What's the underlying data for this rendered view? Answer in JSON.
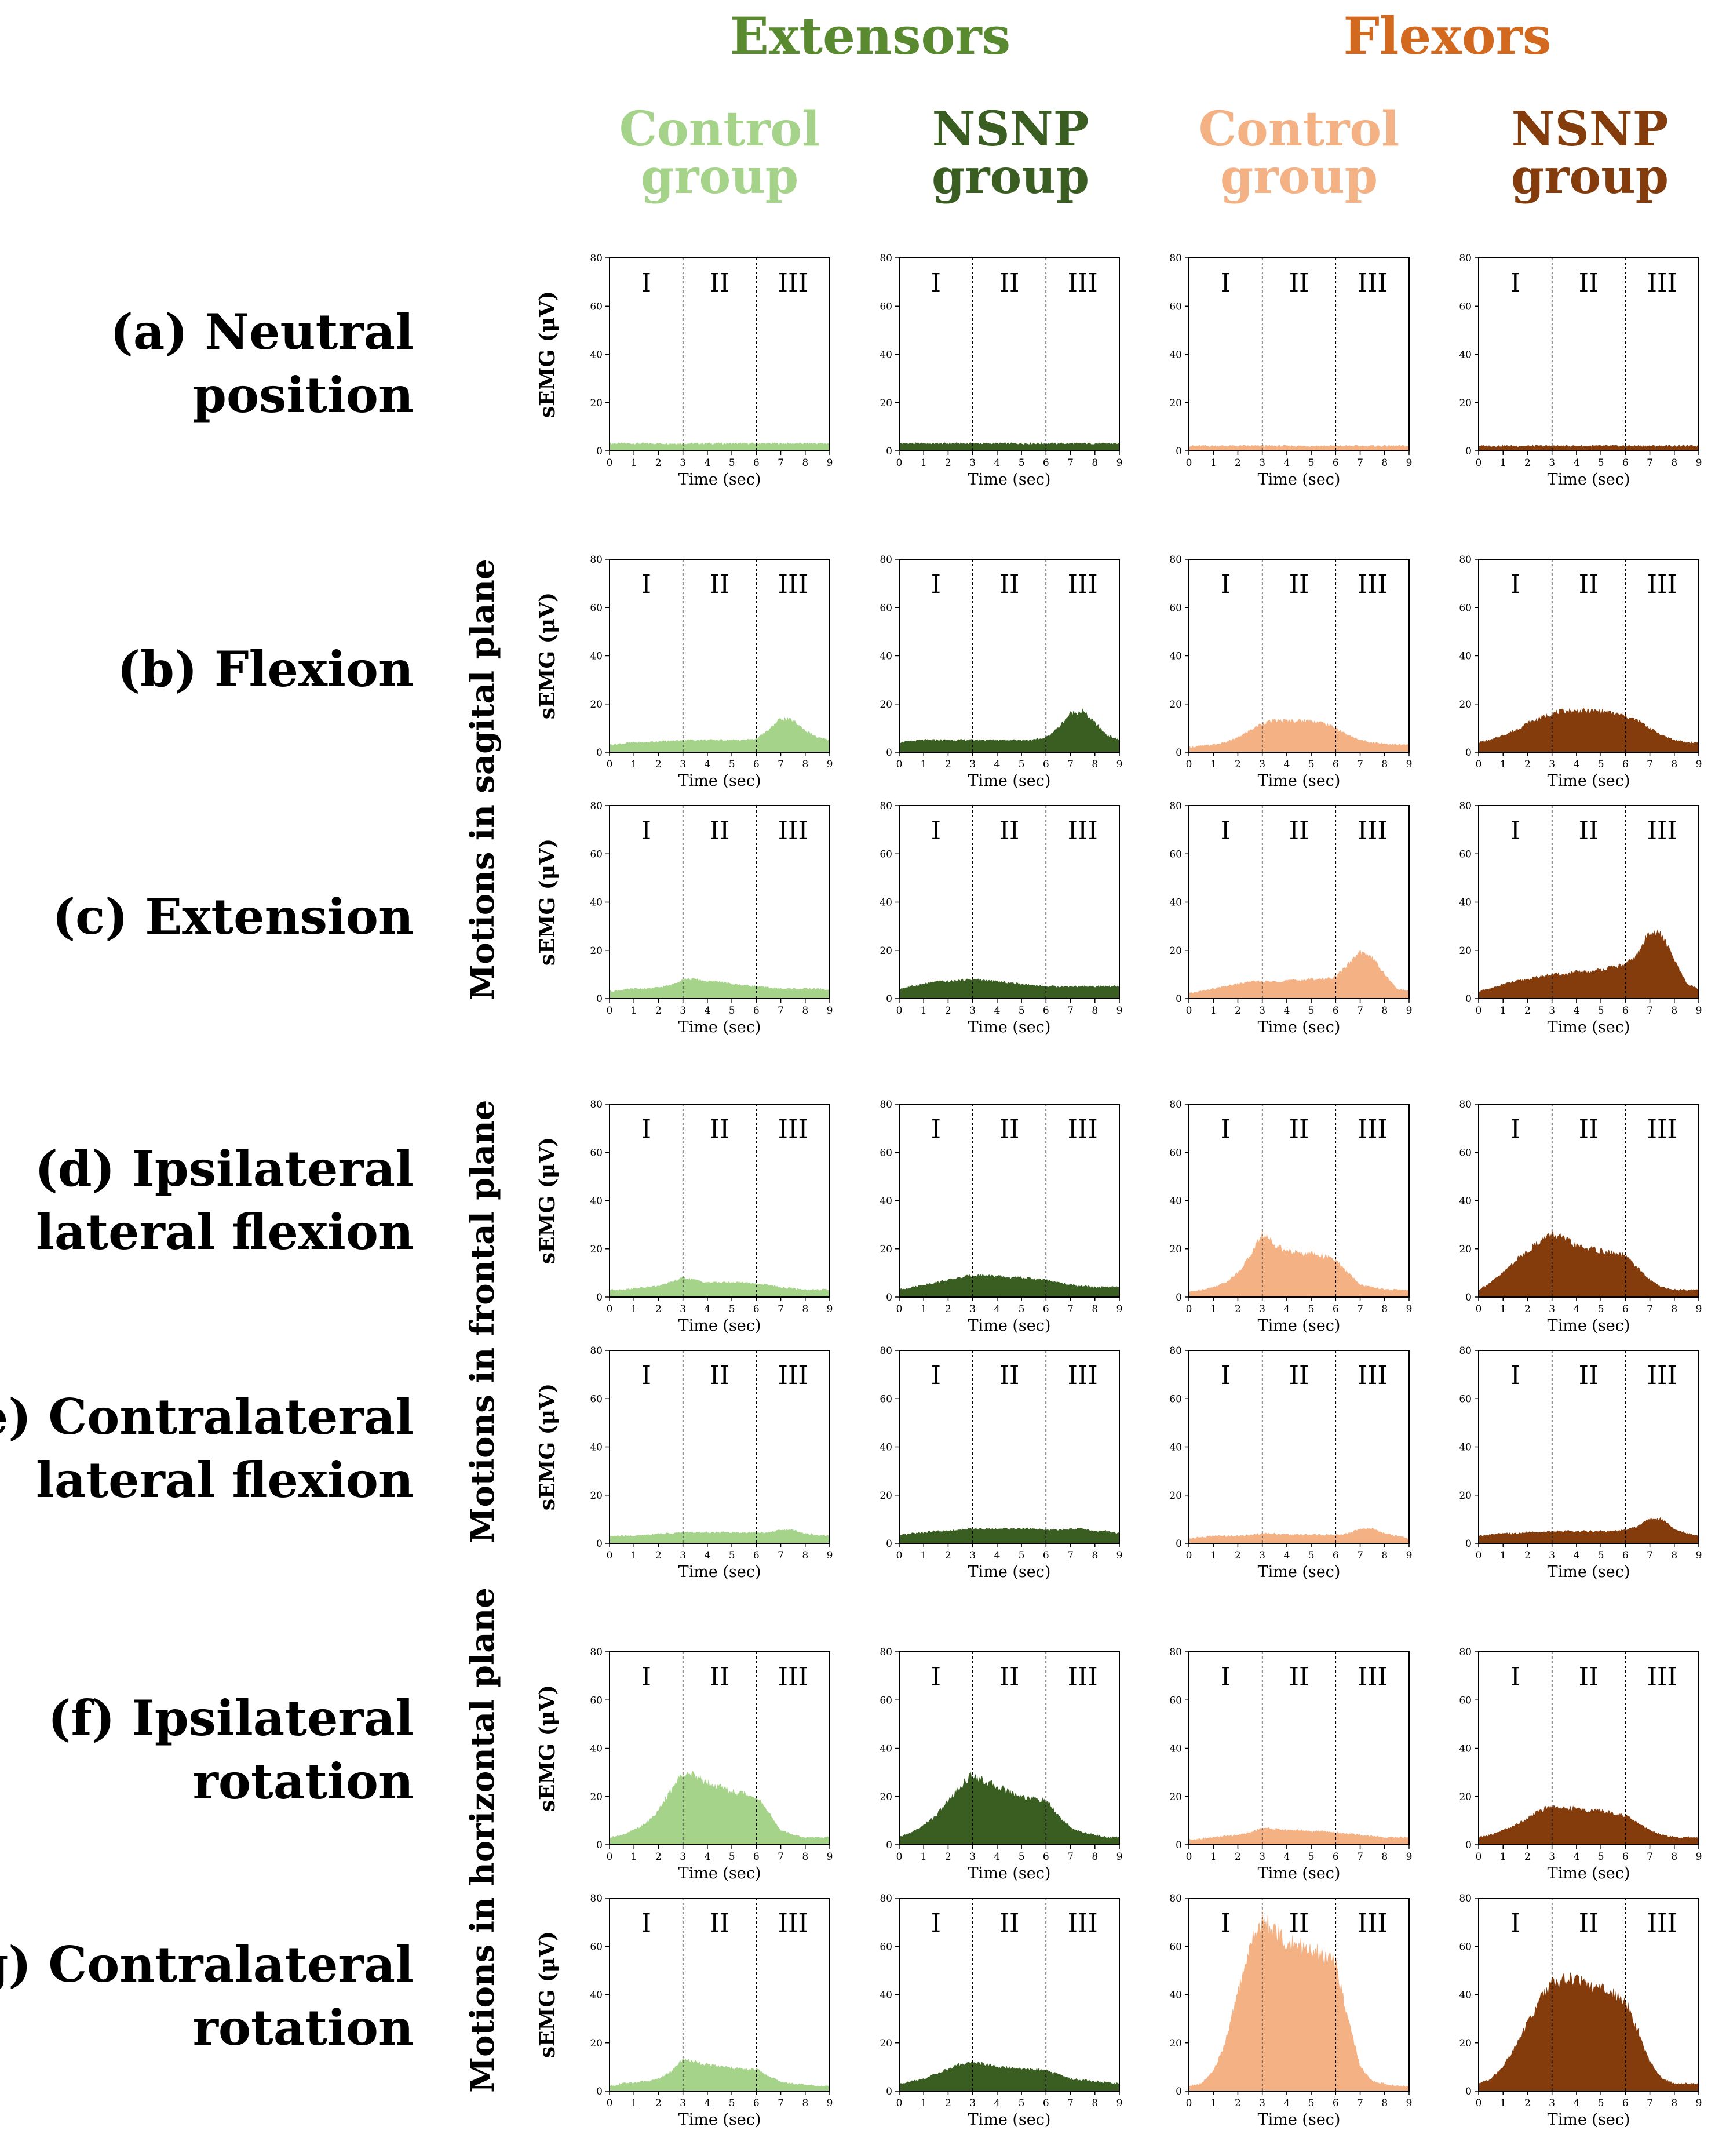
{
  "headers": {
    "extensors": "Extensors",
    "flexors": "Flexors",
    "groups": [
      {
        "line1": "Control",
        "line2": "group"
      },
      {
        "line1": "NSNP",
        "line2": "group"
      },
      {
        "line1": "Control",
        "line2": "group"
      },
      {
        "line1": "NSNP",
        "line2": "group"
      }
    ]
  },
  "colors": {
    "extensors_title": "#5a8a2f",
    "flexors_title": "#d2691e",
    "columns": [
      "#a6d38a",
      "#3a5e22",
      "#f4b183",
      "#843c0c"
    ]
  },
  "rows": [
    {
      "prefix": "(a)",
      "line1": "Neutral",
      "line2": "position"
    },
    {
      "prefix": "(b)",
      "line1": "Flexion",
      "line2": ""
    },
    {
      "prefix": "(c)",
      "line1": "Extension",
      "line2": ""
    },
    {
      "prefix": "(d)",
      "line1": "Ipsilateral",
      "line2": "lateral flexion"
    },
    {
      "prefix": "(e)",
      "line1": "Contralateral",
      "line2": "lateral flexion"
    },
    {
      "prefix": "(f)",
      "line1": "Ipsilateral",
      "line2": "rotation"
    },
    {
      "prefix": "(g)",
      "line1": "Contralateral",
      "line2": "rotation"
    }
  ],
  "planes": [
    "Motions in sagital plane",
    "Motions in frontal plane",
    "Motions in horizontal plane"
  ],
  "chart_data": {
    "type": "area",
    "description_of_series": "sEMG envelope profiles; each series lists amplitude (µV) at x = 0,0.5,...,9 s",
    "x": [
      0,
      0.5,
      1,
      1.5,
      2,
      2.5,
      3,
      3.5,
      4,
      4.5,
      5,
      5.5,
      6,
      6.5,
      7,
      7.5,
      8,
      8.5,
      9
    ],
    "xlabel": "Time (sec)",
    "ylabel": "sEMG (μV)",
    "xlim": [
      0,
      9
    ],
    "ylim": [
      0,
      80
    ],
    "xticks": [
      0,
      1,
      2,
      3,
      4,
      5,
      6,
      7,
      8,
      9
    ],
    "yticks": [
      0,
      20,
      40,
      60,
      80
    ],
    "phase_boundaries": [
      3,
      6
    ],
    "phase_labels": [
      "I",
      "II",
      "III"
    ],
    "columns": [
      "Extensors Control group",
      "Extensors NSNP group",
      "Flexors Control group",
      "Flexors NSNP group"
    ],
    "series": [
      [
        {
          "name": "Neutral position - Extensors Control",
          "values": [
            3,
            3,
            3,
            3,
            3,
            3,
            3,
            3,
            3,
            3,
            3,
            3,
            3,
            3,
            3,
            3,
            3,
            3,
            3
          ]
        },
        {
          "name": "Neutral position - Extensors NSNP",
          "values": [
            3,
            3,
            3,
            3,
            3,
            3,
            3,
            3,
            3,
            3,
            3,
            3,
            3,
            3,
            3,
            3,
            3,
            3,
            3
          ]
        },
        {
          "name": "Neutral position - Flexors Control",
          "values": [
            2,
            2,
            2,
            2,
            2,
            2,
            2,
            2,
            2,
            2,
            2,
            2,
            2,
            2,
            2,
            2,
            2,
            2,
            2
          ]
        },
        {
          "name": "Neutral position - Flexors NSNP",
          "values": [
            2,
            2,
            2,
            2,
            2,
            2,
            2,
            2,
            2,
            2,
            2,
            2,
            2,
            2,
            2,
            2,
            2,
            2,
            2
          ]
        }
      ],
      [
        {
          "name": "Flexion - Extensors Control",
          "values": [
            3,
            3.5,
            4,
            4,
            4.5,
            4.5,
            5,
            5,
            5,
            5,
            5,
            5,
            5.5,
            9,
            14,
            13,
            9,
            6,
            5
          ]
        },
        {
          "name": "Flexion - Extensors NSNP",
          "values": [
            4,
            4.5,
            5,
            5,
            5,
            5,
            5,
            5,
            5,
            5,
            5,
            5,
            6,
            10,
            16,
            17,
            12,
            7,
            5
          ]
        },
        {
          "name": "Flexion - Flexors Control",
          "values": [
            2,
            2.5,
            3,
            4,
            6,
            9,
            12,
            13,
            13,
            13,
            13,
            12,
            10,
            7,
            5,
            4,
            3.5,
            3,
            3
          ]
        },
        {
          "name": "Flexion - Flexors NSNP",
          "values": [
            4,
            5,
            7,
            9,
            12,
            14,
            16,
            17,
            17,
            17,
            17,
            16,
            15,
            13,
            10,
            7,
            5,
            4,
            4
          ]
        }
      ],
      [
        {
          "name": "Extension - Extensors Control",
          "values": [
            3,
            3.5,
            4,
            4,
            4.5,
            5.5,
            8,
            8,
            7,
            7,
            6,
            5.5,
            5,
            4.5,
            4,
            4,
            4,
            4,
            3.5
          ]
        },
        {
          "name": "Extension - Extensors NSNP",
          "values": [
            4,
            5,
            6,
            7,
            7,
            7.5,
            8,
            7.5,
            7,
            6.5,
            6,
            5.5,
            5,
            5,
            5,
            5,
            5,
            5,
            5
          ]
        },
        {
          "name": "Extension - Flexors Control",
          "values": [
            2,
            3,
            4,
            5,
            6,
            7,
            7,
            7,
            7.5,
            7.5,
            8,
            8,
            9,
            14,
            19,
            17,
            10,
            4,
            3
          ]
        },
        {
          "name": "Extension - Flexors NSNP",
          "values": [
            3,
            4,
            6,
            7,
            8,
            9,
            10,
            10,
            11,
            11,
            12,
            13,
            14,
            18,
            28,
            26,
            16,
            6,
            4
          ]
        }
      ],
      [
        {
          "name": "Ipsilateral lateral flexion - Extensors Control",
          "values": [
            3,
            3,
            3.5,
            4,
            4.5,
            6,
            8,
            7,
            6,
            6,
            6,
            6,
            5.5,
            5,
            4,
            3.5,
            3,
            3,
            3
          ]
        },
        {
          "name": "Ipsilateral lateral flexion - Extensors NSNP",
          "values": [
            3,
            4,
            5,
            6,
            7,
            8,
            9,
            9,
            8.5,
            8,
            8,
            7.5,
            7,
            6,
            5,
            4.5,
            4,
            4,
            4
          ]
        },
        {
          "name": "Ipsilateral lateral flexion - Flexors Control",
          "values": [
            2,
            3,
            4,
            6,
            10,
            17,
            26,
            22,
            19,
            18,
            18,
            17,
            15,
            10,
            5,
            4,
            3,
            3,
            3
          ]
        },
        {
          "name": "Ipsilateral lateral flexion - Flexors NSNP",
          "values": [
            3,
            6,
            10,
            15,
            19,
            23,
            26,
            24,
            21,
            20,
            19,
            18,
            17,
            12,
            7,
            4,
            3,
            3,
            3
          ]
        }
      ],
      [
        {
          "name": "Contralateral lateral flexion - Extensors Control",
          "values": [
            3,
            3,
            3,
            3.5,
            4,
            4,
            4.5,
            4.5,
            4.5,
            4.5,
            4.5,
            4.5,
            4.5,
            4.5,
            5.5,
            5.5,
            4,
            3.5,
            3
          ]
        },
        {
          "name": "Contralateral lateral flexion - Extensors NSNP",
          "values": [
            3,
            4,
            4.5,
            5,
            5,
            5.5,
            6,
            6,
            6,
            6,
            6,
            6,
            5.5,
            5.5,
            6,
            6,
            5,
            5,
            4
          ]
        },
        {
          "name": "Contralateral lateral flexion - Flexors Control",
          "values": [
            2,
            2.5,
            3,
            3,
            3,
            3.5,
            4,
            4,
            3.5,
            3.5,
            3.5,
            3.5,
            3.5,
            4,
            6,
            6,
            4,
            3,
            2
          ]
        },
        {
          "name": "Contralateral lateral flexion - Flexors NSNP",
          "values": [
            3,
            3.5,
            4,
            4,
            4.5,
            4.5,
            5,
            5,
            5,
            5,
            5,
            5,
            5.5,
            7,
            10,
            10,
            6,
            4,
            3
          ]
        }
      ],
      [
        {
          "name": "Ipsilateral rotation - Extensors Control",
          "values": [
            3,
            4,
            6,
            9,
            14,
            22,
            30,
            28,
            26,
            24,
            22,
            21,
            20,
            13,
            6,
            4,
            3,
            3,
            3
          ]
        },
        {
          "name": "Ipsilateral rotation - Extensors NSNP",
          "values": [
            3,
            5,
            8,
            12,
            18,
            24,
            29,
            26,
            24,
            22,
            20,
            19,
            18,
            12,
            7,
            5,
            4,
            3,
            3
          ]
        },
        {
          "name": "Ipsilateral rotation - Flexors Control",
          "values": [
            2,
            2.5,
            3,
            3.5,
            4,
            5,
            7,
            6.5,
            6,
            6,
            5.5,
            5.5,
            5,
            4.5,
            4,
            3.5,
            3,
            3,
            3
          ]
        },
        {
          "name": "Ipsilateral rotation - Flexors NSNP",
          "values": [
            3,
            4,
            6,
            8,
            11,
            14,
            16,
            15,
            15,
            14,
            14,
            13,
            12,
            9,
            6,
            4,
            3,
            3,
            3
          ]
        }
      ],
      [
        {
          "name": "Contralateral rotation - Extensors Control",
          "values": [
            2,
            3,
            3.5,
            4,
            5,
            8,
            13,
            12,
            11,
            10,
            9.5,
            9,
            9,
            6,
            4,
            3,
            2.5,
            2,
            2
          ]
        },
        {
          "name": "Contralateral rotation - Extensors NSNP",
          "values": [
            3,
            4,
            5,
            7,
            9,
            11,
            12,
            11,
            10,
            9.5,
            9,
            9,
            8.5,
            7,
            5,
            4.5,
            4,
            3.5,
            3
          ]
        },
        {
          "name": "Contralateral rotation - Flexors Control",
          "values": [
            2,
            3,
            8,
            20,
            40,
            60,
            70,
            66,
            62,
            60,
            58,
            56,
            52,
            30,
            10,
            4,
            3,
            2,
            2
          ]
        },
        {
          "name": "Contralateral rotation - Flexors NSNP",
          "values": [
            3,
            5,
            10,
            18,
            28,
            38,
            45,
            46,
            46,
            44,
            42,
            40,
            37,
            25,
            12,
            5,
            3,
            3,
            3
          ]
        }
      ]
    ]
  }
}
